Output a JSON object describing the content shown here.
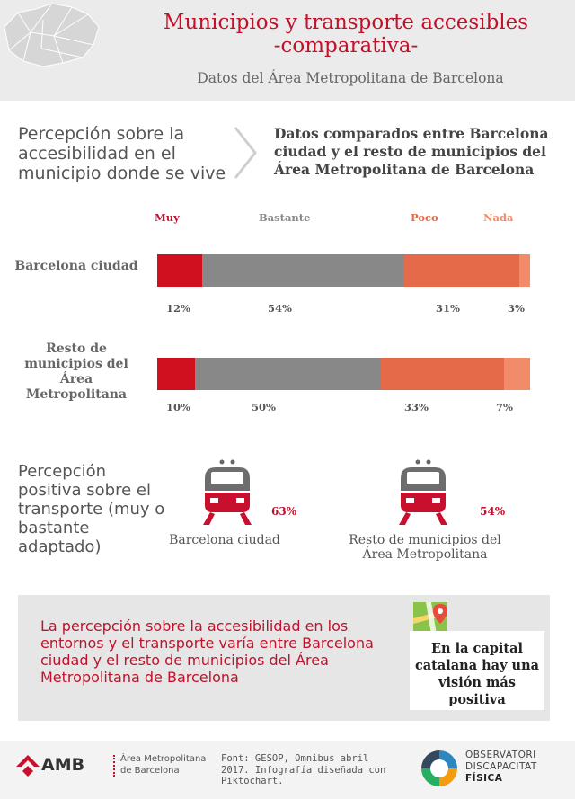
{
  "header": {
    "title_line1": "Municipios y transporte accesibles",
    "title_line2": "-comparativa-",
    "subtitle": "Datos del Área Metropolitana de Barcelona"
  },
  "section1": {
    "perception_text": "Percepción sobre la accesibilidad en el municipio donde se vive",
    "compare_text": "Datos comparados entre Barcelona ciudad y el resto de municipios del Área Metropolitana de Barcelona"
  },
  "chart_data": {
    "type": "bar",
    "orientation": "horizontal-stacked",
    "categories": [
      "Barcelona ciudad",
      "Resto de municipios del Área Metropolitana"
    ],
    "series": [
      {
        "name": "Muy",
        "values": [
          12,
          10
        ],
        "color": "#d0101e"
      },
      {
        "name": "Bastante",
        "values": [
          54,
          50
        ],
        "color": "#888888"
      },
      {
        "name": "Poco",
        "values": [
          31,
          33
        ],
        "color": "#e56a4a"
      },
      {
        "name": "Nada",
        "values": [
          3,
          7
        ],
        "color": "#f28b6a"
      }
    ],
    "labels": [
      [
        "12%",
        "54%",
        "31%",
        "3%"
      ],
      [
        "10%",
        "50%",
        "33%",
        "7%"
      ]
    ],
    "legend_placement": "top"
  },
  "transport": {
    "text": "Percepción positiva sobre el transporte (muy o bastante adaptado)",
    "items": [
      {
        "label": "Barcelona ciudad",
        "value": "63%",
        "icon": "train-icon"
      },
      {
        "label": "Resto de municipios del Área Metropolitana",
        "value": "54%",
        "icon": "train-icon"
      }
    ]
  },
  "conclusion": {
    "text": "La percepción sobre la accesibilidad en los entornos y el transporte varía entre Barcelona ciudad y el resto de municipios del Área Metropolitana de Barcelona",
    "highlight": "En la capital catalana hay una visión más positiva",
    "icon": "map-pin-icon"
  },
  "footer": {
    "amb_logo": "AMB",
    "amb_name": "Àrea Metropolitana de Barcelona",
    "source": "Font: GESOP, Omnibus abril 2017. Infografía diseñada con Piktochart.",
    "obs_line1": "OBSERVATORI",
    "obs_line2": "DISCAPACITAT",
    "obs_line3": "FÍSICA"
  },
  "colors": {
    "accent": "#c0122a",
    "header_bg": "#ebebeb"
  }
}
